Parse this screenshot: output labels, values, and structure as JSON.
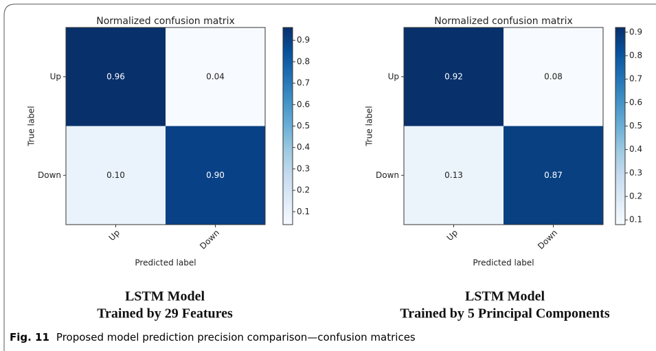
{
  "chart_data": [
    {
      "type": "heatmap",
      "title": "Normalized confusion matrix",
      "xlabel": "Predicted label",
      "ylabel": "True label",
      "x": [
        "Up",
        "Down"
      ],
      "y": [
        "Up",
        "Down"
      ],
      "values": [
        [
          0.96,
          0.04
        ],
        [
          0.1,
          0.9
        ]
      ],
      "value_labels": [
        [
          "0.96",
          "0.04"
        ],
        [
          "0.10",
          "0.90"
        ]
      ],
      "colormap": "Blues",
      "clim": [
        0.04,
        0.96
      ],
      "colorbar_ticks": [
        0.1,
        0.2,
        0.3,
        0.4,
        0.5,
        0.6,
        0.7,
        0.8,
        0.9
      ],
      "subtitle": [
        "LSTM Model",
        "Trained by 29 Features"
      ]
    },
    {
      "type": "heatmap",
      "title": "Normalized confusion matrix",
      "xlabel": "Predicted label",
      "ylabel": "True label",
      "x": [
        "Up",
        "Down"
      ],
      "y": [
        "Up",
        "Down"
      ],
      "values": [
        [
          0.92,
          0.08
        ],
        [
          0.13,
          0.87
        ]
      ],
      "value_labels": [
        [
          "0.92",
          "0.08"
        ],
        [
          "0.13",
          "0.87"
        ]
      ],
      "colormap": "Blues",
      "clim": [
        0.08,
        0.92
      ],
      "colorbar_ticks": [
        0.1,
        0.2,
        0.3,
        0.4,
        0.5,
        0.6,
        0.7,
        0.8,
        0.9
      ],
      "subtitle": [
        "LSTM Model",
        "Trained by 5 Principal Components"
      ]
    }
  ],
  "caption": {
    "label": "Fig. 11",
    "text": "Proposed model prediction precision comparison—confusion matrices"
  }
}
